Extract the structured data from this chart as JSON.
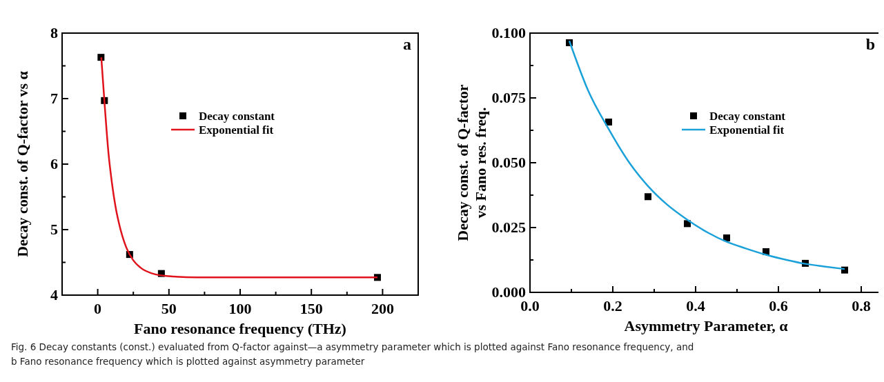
{
  "chart_data": [
    {
      "type": "scatter",
      "xlabel": "Fano resonance frequency (THz)",
      "ylabel": "Decay const. of Q-factor vs α",
      "annotations": [
        "a",
        "Fig. 6  Decay constants (const.) evaluated from Q-factor against—a asymmetry parameter which is plotted against Fano resonance frequency, and b Fano resonance frequency which is plotted against asymmetry parameter"
      ],
      "xlim": [
        -25,
        225
      ],
      "xticks": [
        0,
        {
          "value": 25,
          "label": null
        },
        50,
        {
          "value": 75,
          "label": null
        },
        100,
        {
          "value": 125,
          "label": null
        },
        150,
        {
          "value": 175,
          "label": null
        },
        200
      ],
      "ylim": [
        4,
        8
      ],
      "yticks": [
        4,
        {
          "value": 4.5,
          "label": null
        },
        5,
        {
          "value": 5.5,
          "label": null
        },
        6,
        {
          "value": 6.5,
          "label": null
        },
        7,
        {
          "value": 7.5,
          "label": null
        },
        8
      ],
      "legend": "top",
      "grid": false,
      "series": [
        {
          "name": "Decay constant",
          "marker": "square",
          "color": "#000000",
          "x": [
            2.3,
            4.7,
            22.4,
            44.7,
            196.4
          ],
          "values": [
            7.63,
            6.97,
            4.62,
            4.33,
            4.27
          ]
        },
        {
          "name": "Exponential fit",
          "type": "line",
          "marker": "none",
          "color": "#e0121b",
          "line_style": "solid",
          "x": [
            2.5,
            5,
            7.5,
            10,
            12.5,
            15,
            20,
            25,
            30,
            40,
            50,
            70,
            100,
            150,
            196.4
          ],
          "values": [
            7.63,
            6.87,
            6.18,
            5.71,
            5.35,
            5.09,
            4.73,
            4.53,
            4.42,
            4.32,
            4.29,
            4.27,
            4.27,
            4.27,
            4.27
          ]
        }
      ]
    },
    {
      "type": "scatter",
      "xlabel": "Asymmetry Parameter, α",
      "ylabel": "Decay const. of Q-factor\nvs Fano res. freq.",
      "annotations": [
        "b"
      ],
      "xlim": [
        0,
        0.85
      ],
      "xticks": [
        {
          "value": 0,
          "label": "0.0"
        },
        {
          "value": 0.1,
          "label": null
        },
        0.2,
        {
          "value": 0.3,
          "label": null
        },
        0.4,
        {
          "value": 0.5,
          "label": null
        },
        0.6,
        {
          "value": 0.7,
          "label": null
        },
        0.8
      ],
      "ylim": [
        0,
        0.1
      ],
      "yticks": [
        {
          "value": 0,
          "label": "0.000"
        },
        {
          "value": 0.0125,
          "label": null
        },
        {
          "value": 0.025,
          "label": "0.025"
        },
        {
          "value": 0.0375,
          "label": null
        },
        {
          "value": 0.05,
          "label": "0.050"
        },
        {
          "value": 0.0625,
          "label": null
        },
        {
          "value": 0.075,
          "label": "0.075"
        },
        {
          "value": 0.0875,
          "label": null
        },
        {
          "value": 0.1,
          "label": "0.100"
        }
      ],
      "legend": "top right",
      "grid": false,
      "series": [
        {
          "name": "Decay constant",
          "marker": "square",
          "color": "#000000",
          "x": [
            0.095,
            0.19,
            0.285,
            0.38,
            0.475,
            0.57,
            0.665,
            0.76
          ],
          "values": [
            0.0963,
            0.0657,
            0.0369,
            0.0265,
            0.021,
            0.0157,
            0.0112,
            0.0086
          ]
        },
        {
          "name": "Exponential fit",
          "type": "line",
          "marker": "none",
          "color": "#1ba1d9",
          "line_style": "solid",
          "x": [
            0.095,
            0.14,
            0.19,
            0.24,
            0.285,
            0.33,
            0.38,
            0.43,
            0.475,
            0.52,
            0.57,
            0.62,
            0.665,
            0.71,
            0.76
          ],
          "values": [
            0.097,
            0.078,
            0.063,
            0.05,
            0.041,
            0.034,
            0.028,
            0.023,
            0.0195,
            0.017,
            0.0145,
            0.0125,
            0.011,
            0.01,
            0.009
          ]
        }
      ]
    }
  ]
}
